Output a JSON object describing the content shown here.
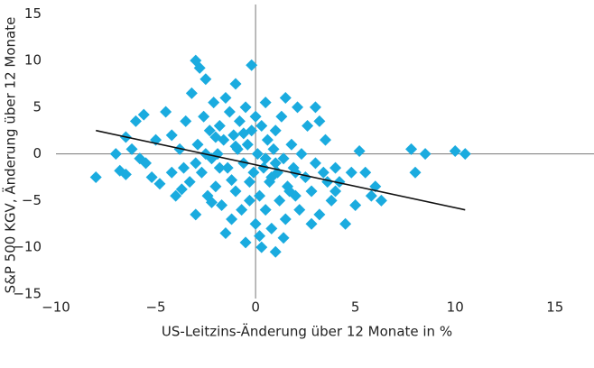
{
  "chart_data": {
    "type": "scatter",
    "xlabel": "US-Leitzins-Änderung über 12 Monate in %",
    "ylabel": "S&P 500 KGV, Änderung über 12 Monate",
    "color": "#1aabdf",
    "trend_color": "#111111",
    "xlim": [
      -10,
      17
    ],
    "ylim": [
      -15.5,
      16
    ],
    "xticks": [
      {
        "value": -10,
        "label": "−10"
      },
      {
        "value": -5,
        "label": "−5"
      },
      0,
      5,
      10,
      15
    ],
    "yticks": [
      {
        "value": -15,
        "label": "−15"
      },
      {
        "value": -10,
        "label": "−10"
      },
      {
        "value": -5,
        "label": "−5"
      },
      0,
      5,
      10,
      15
    ],
    "x": [
      -8,
      -7,
      -6.8,
      -6.5,
      -6.2,
      -6,
      -5.6,
      -5.5,
      -5.2,
      -5,
      -4.8,
      -4.5,
      -4.2,
      -4,
      -3.8,
      -3.6,
      -3.5,
      -3.3,
      -3.2,
      -3,
      -3,
      -2.9,
      -2.8,
      -2.7,
      -2.6,
      -2.5,
      -2.4,
      -2.3,
      -2.2,
      -2.1,
      -2,
      -1.9,
      -1.8,
      -1.7,
      -1.6,
      -1.5,
      -1.5,
      -1.4,
      -1.3,
      -1.2,
      -1.1,
      -1,
      -1,
      -0.9,
      -0.8,
      -0.7,
      -0.6,
      -0.5,
      -0.5,
      -0.4,
      -0.3,
      -0.2,
      -0.2,
      -0.1,
      0,
      0,
      0.1,
      0.2,
      0.3,
      0.3,
      0.4,
      0.5,
      0.5,
      0.6,
      0.7,
      0.8,
      0.9,
      1,
      1,
      1.1,
      1.2,
      1.3,
      1.4,
      1.5,
      1.5,
      1.6,
      1.8,
      1.9,
      2,
      2.1,
      2.2,
      2.3,
      2.5,
      2.6,
      2.8,
      3,
      3,
      3.2,
      3.4,
      3.5,
      3.6,
      3.8,
      4,
      4.2,
      4.5,
      4.8,
      5,
      5.2,
      5.5,
      5.8,
      6,
      6.3,
      7.8,
      8,
      8.5,
      10,
      10.5,
      -4.2,
      -3,
      -2,
      -1,
      0.5,
      1,
      2,
      -0.3,
      0.8,
      -1.8,
      -2.5,
      1.7,
      -0.6,
      3.2,
      -5.8,
      -6.5,
      0.2,
      1.4,
      -1.2,
      2.8,
      4,
      -3.7,
      -2.2
    ],
    "y": [
      -2.5,
      0,
      -1.8,
      -2.2,
      0.5,
      3.5,
      4.2,
      -1,
      -2.5,
      1.5,
      -3.2,
      4.5,
      2,
      -4.5,
      0.5,
      -1.5,
      3.5,
      -3,
      6.5,
      10,
      -6.5,
      1,
      9.2,
      -2,
      4,
      8,
      -4.5,
      2.5,
      -0.5,
      5.5,
      -3.5,
      0,
      3,
      -5.5,
      1.5,
      -8.5,
      6,
      -1.5,
      4.5,
      -2.8,
      2,
      7.5,
      -4,
      0.5,
      3.5,
      -6,
      -1,
      -9.5,
      5,
      1,
      -3,
      9.5,
      2.5,
      -2,
      4,
      -7.5,
      0,
      -4.5,
      -10,
      3,
      -1.5,
      5.5,
      -6,
      1.5,
      -3,
      -8,
      0.5,
      -10.5,
      2.5,
      -2,
      -5,
      4,
      -0.5,
      6,
      -7,
      -3.5,
      1,
      -1.5,
      -4.5,
      5,
      -6,
      0,
      -2.5,
      3,
      -4,
      5,
      -1,
      -6.5,
      -2,
      1.5,
      -3,
      -5,
      -1.5,
      -3,
      -7.5,
      -2,
      -5.5,
      0.3,
      -2,
      -4.5,
      -3.5,
      -5,
      0.5,
      -2,
      0,
      0.3,
      0,
      -2,
      -1,
      1.8,
      0.8,
      -0.5,
      -1,
      -2,
      -5,
      -2.5,
      -1.5,
      0,
      -4,
      2.2,
      3.5,
      -0.5,
      1.8,
      -8.8,
      -9,
      -7,
      -7.5,
      -4,
      -3.8,
      -5.2
    ],
    "trendline": {
      "x": [
        -8,
        10.5
      ],
      "y": [
        2.5,
        -6
      ]
    }
  }
}
